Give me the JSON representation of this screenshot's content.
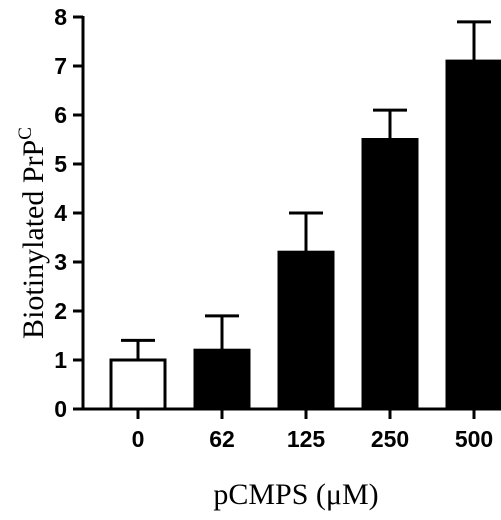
{
  "chart_data": {
    "type": "bar",
    "categories": [
      "0",
      "62",
      "125",
      "250",
      "500"
    ],
    "values": [
      1.0,
      1.2,
      3.2,
      5.5,
      7.1
    ],
    "error_upper": [
      0.4,
      0.7,
      0.8,
      0.6,
      0.8
    ],
    "bar_fill": [
      "white",
      "black",
      "black",
      "black",
      "black"
    ],
    "xlabel": "pCMPS (μM)",
    "ylabel_main": "Biotinylated PrP",
    "ylabel_superscript": "C",
    "ylim": [
      0,
      8
    ],
    "yticks": [
      "0",
      "1",
      "2",
      "3",
      "4",
      "5",
      "6",
      "7",
      "8"
    ],
    "grid": false,
    "legend": "none"
  },
  "colors": {
    "axis": "#000000",
    "bar_dark": "#000000",
    "bar_light": "#ffffff"
  }
}
